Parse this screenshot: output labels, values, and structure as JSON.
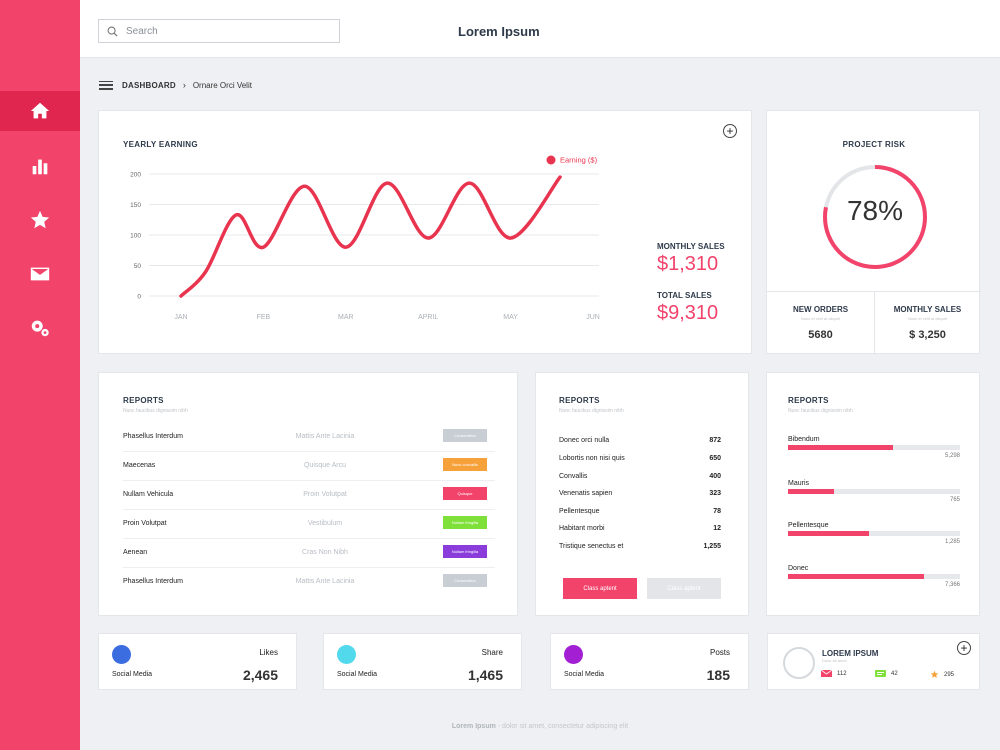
{
  "app": {
    "title": "Lorem Ipsum"
  },
  "search": {
    "placeholder": "Search"
  },
  "breadcrumb": {
    "root": "DASHBOARD",
    "current": "Ornare Orci Velit"
  },
  "sidebar": {
    "items": [
      {
        "icon": "home-icon",
        "active": true
      },
      {
        "icon": "bar-chart-icon",
        "active": false
      },
      {
        "icon": "star-icon",
        "active": false
      },
      {
        "icon": "mail-icon",
        "active": false
      },
      {
        "icon": "settings-icon",
        "active": false
      }
    ]
  },
  "earnings": {
    "title": "YEARLY EARNING",
    "monthly_sales_label": "MONTHLY SALES",
    "monthly_sales_value": "$1,310",
    "total_sales_label": "TOTAL SALES",
    "total_sales_value": "$9,310"
  },
  "chart_data": {
    "type": "line",
    "title": "YEARLY EARNING",
    "categories": [
      "JAN",
      "FEB",
      "MAR",
      "APRIL",
      "MAY",
      "JUN"
    ],
    "yticks": [
      0,
      50,
      100,
      150,
      200
    ],
    "ylim": [
      0,
      200
    ],
    "grid": true,
    "legend_position": "top-right",
    "series": [
      {
        "name": "Earning ($)",
        "color": "#e8344e",
        "x": [
          0,
          0.3,
          0.67,
          1,
          1.5,
          2,
          2.5,
          3,
          3.5,
          4,
          4.6
        ],
        "values": [
          0,
          40,
          133,
          80,
          180,
          80,
          185,
          95,
          185,
          95,
          195
        ]
      }
    ]
  },
  "project_risk": {
    "title": "PROJECT RISK",
    "percent_text": "78%",
    "percent": 78,
    "new_orders_label": "NEW ORDERS",
    "new_orders_sub": "Nunc et velit at aliquet",
    "new_orders_value": "5680",
    "monthly_sales_label": "MONTHLY SALES",
    "monthly_sales_sub": "Nunc et velit at aliquet",
    "monthly_sales_value": "$ 3,250"
  },
  "reports1": {
    "title": "REPORTS",
    "subtitle": "Nunc faucibus dignissim nibh",
    "rows": [
      {
        "name": "Phasellus Interdum",
        "detail": "Mattis Ante Lacinia",
        "badge": "Consectetur",
        "color": "#c9ced5"
      },
      {
        "name": "Maecenas",
        "detail": "Quisque Arcu",
        "badge": "Nunc convallis",
        "color": "#f7a13b"
      },
      {
        "name": "Nullam Vehicula",
        "detail": "Proin Volutpat",
        "badge": "Quisque",
        "color": "#f2436b"
      },
      {
        "name": "Proin Volutpat",
        "detail": "Vestibulum",
        "badge": "Nullam fringilla",
        "color": "#7fe03a"
      },
      {
        "name": "Aenean",
        "detail": "Cras Non Nibh",
        "badge": "Nullam fringilla",
        "color": "#8a3ddb"
      },
      {
        "name": "Phasellus Interdum",
        "detail": "Mattis Ante Lacinia",
        "badge": "Consectetur",
        "color": "#c9ced5"
      }
    ]
  },
  "reports2": {
    "title": "REPORTS",
    "subtitle": "Nunc faucibus dignissim nibh",
    "rows": [
      {
        "name": "Donec orci nulla",
        "value": "872"
      },
      {
        "name": "Lobortis non nisi quis",
        "value": "650"
      },
      {
        "name": "Convallis",
        "value": "400"
      },
      {
        "name": "Venenatis sapien",
        "value": "323"
      },
      {
        "name": "Pellentesque",
        "value": "78"
      },
      {
        "name": "Habitant morbi",
        "value": "12"
      },
      {
        "name": "Tristique senectus et",
        "value": "1,255"
      }
    ],
    "primary_button": "Class aptent",
    "secondary_button": "Class aptent"
  },
  "reports3": {
    "title": "REPORTS",
    "subtitle": "Nunc faucibus dignissim nibh",
    "items": [
      {
        "label": "Bibendum",
        "value": "5,298",
        "fraction": 0.61
      },
      {
        "label": "Mauris",
        "value": "765",
        "fraction": 0.27
      },
      {
        "label": "Pellentesque",
        "value": "1,285",
        "fraction": 0.47
      },
      {
        "label": "Donec",
        "value": "7,366",
        "fraction": 0.79
      }
    ]
  },
  "social": [
    {
      "source": "Social Media",
      "label": "Likes",
      "value": "2,465",
      "color": "#3b6ce0"
    },
    {
      "source": "Social Media",
      "label": "Share",
      "value": "1,465",
      "color": "#52d9ec"
    },
    {
      "source": "Social Media",
      "label": "Posts",
      "value": "185",
      "color": "#a21fd4"
    }
  ],
  "profile": {
    "title": "LOREM IPSUM",
    "subtitle": "Dolor sit amet",
    "mail_count": "112",
    "chat_count": "42",
    "star_count": "295"
  },
  "footer": {
    "brand": "Lorem Ipsum",
    "text": " - dolor sit amet, consectetur adipiscing elit"
  }
}
